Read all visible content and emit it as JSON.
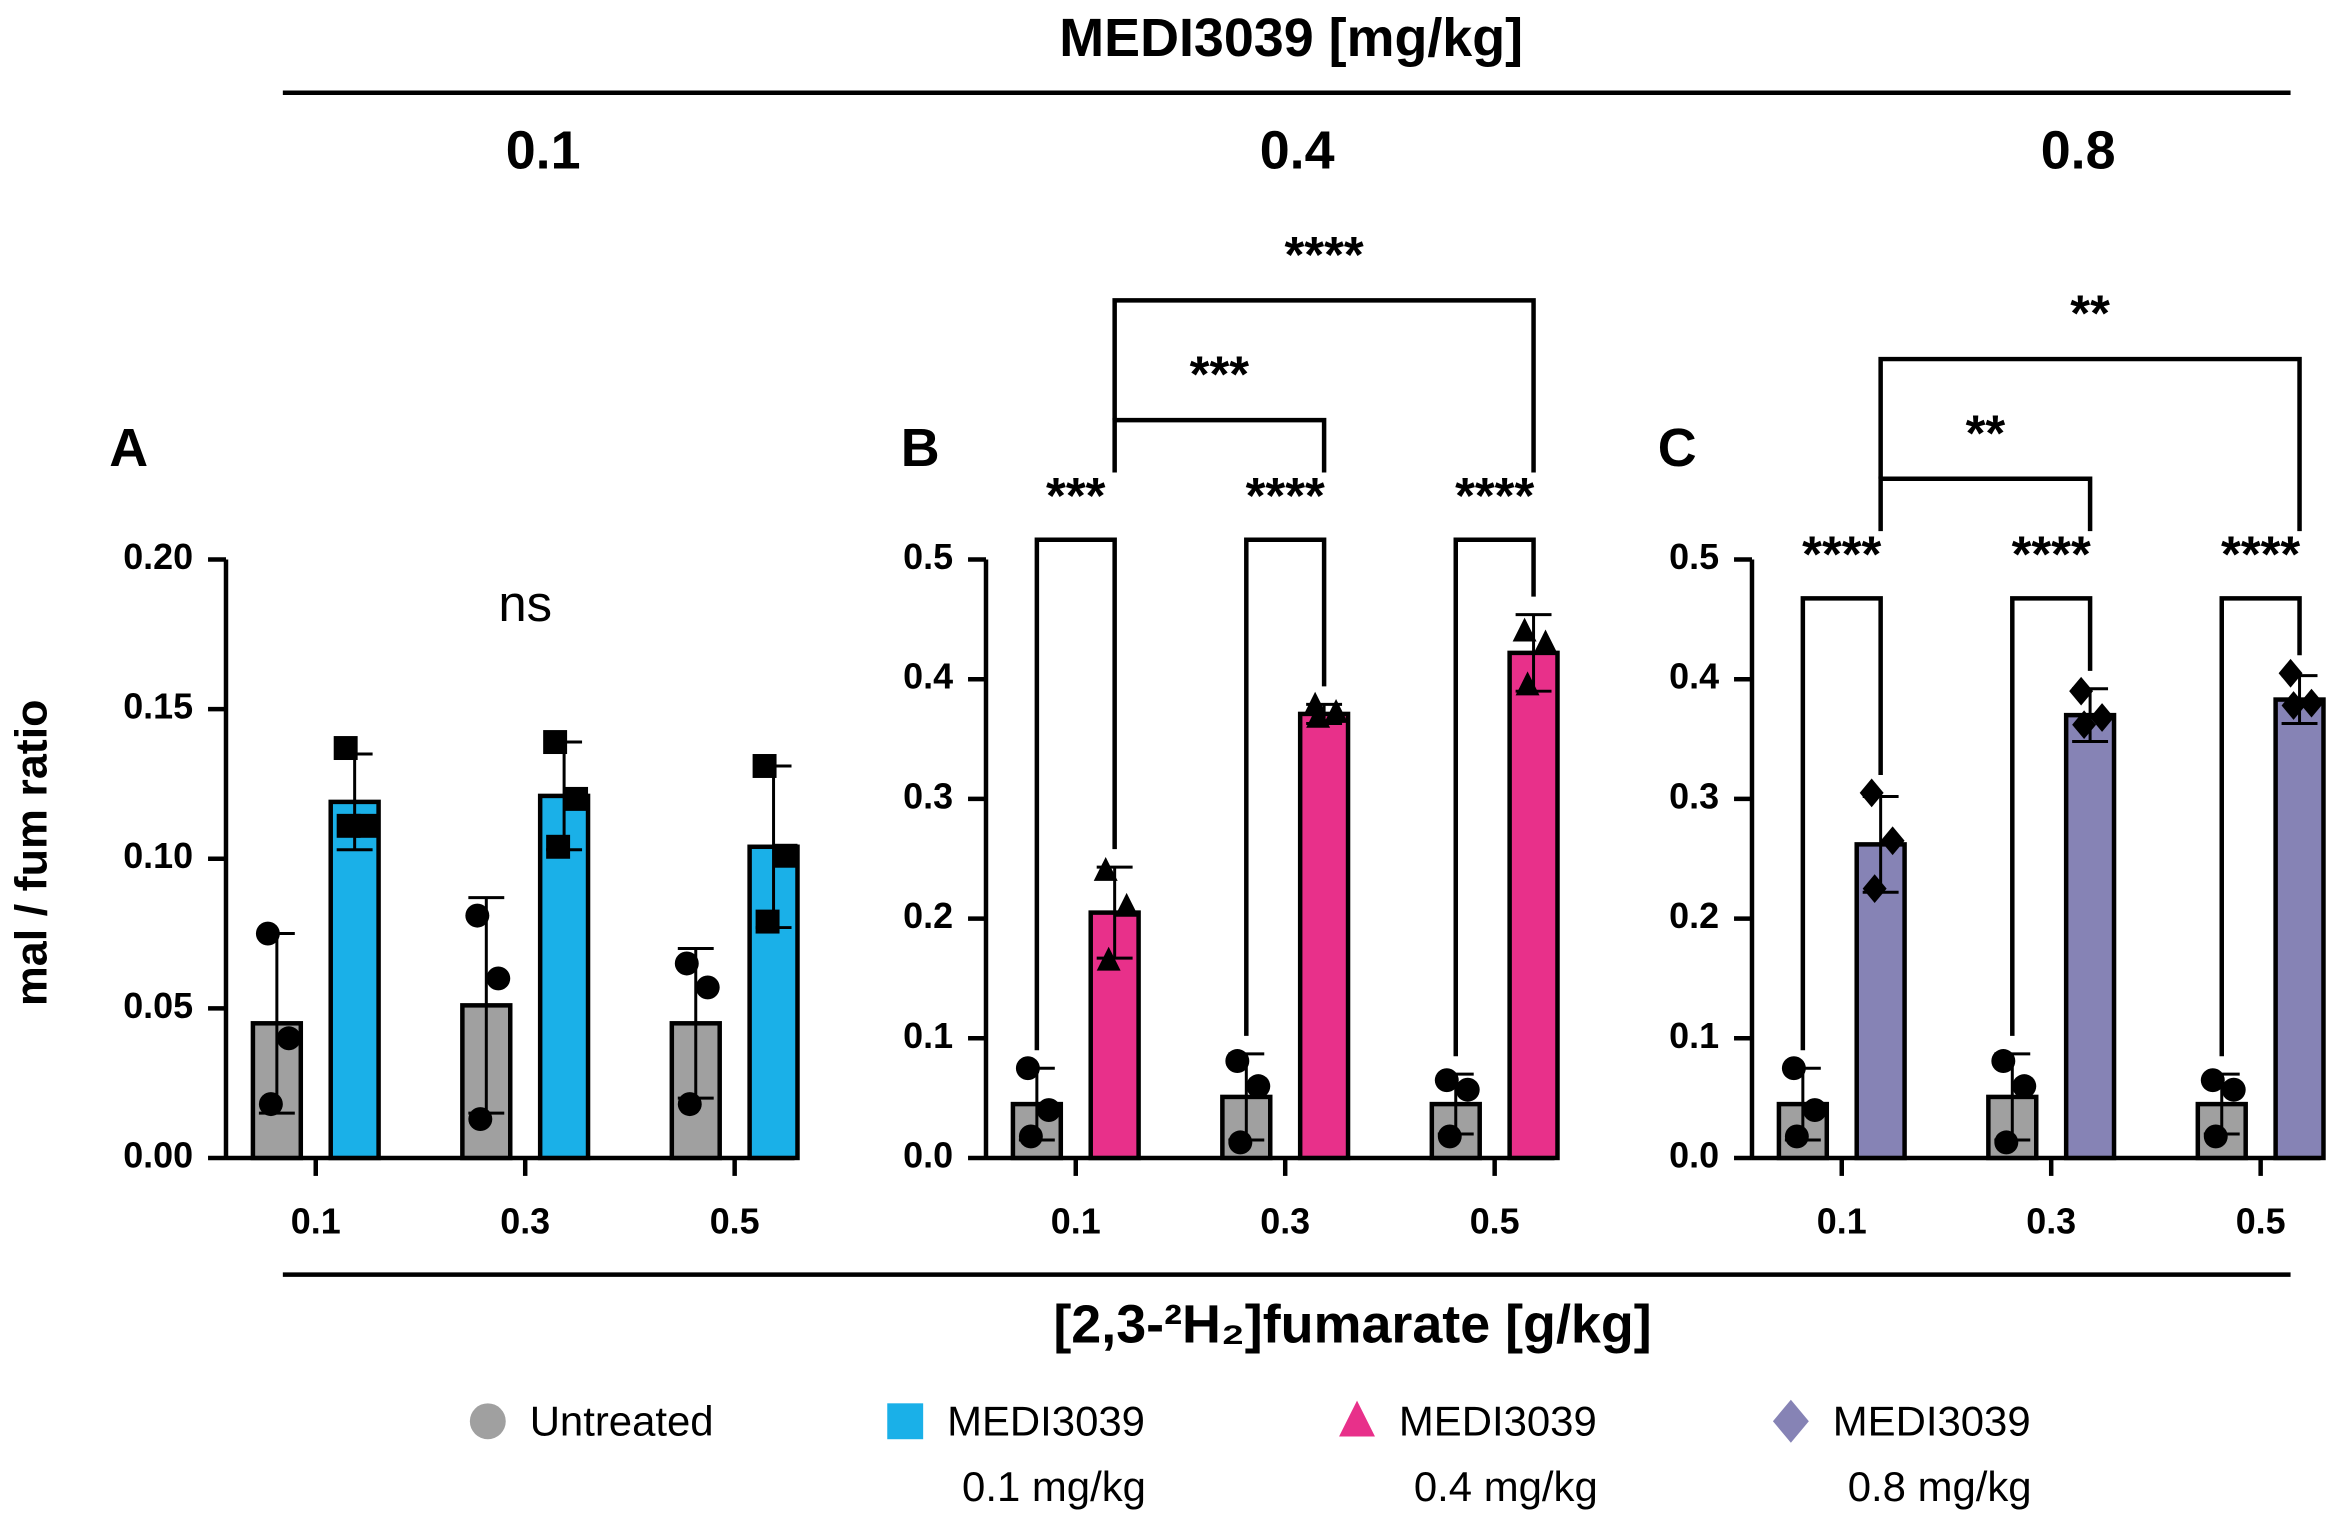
{
  "header": {
    "title": "MEDI3039 [mg/kg]",
    "x_label": "[2,3-²H₂]fumarate [g/kg]"
  },
  "legend": [
    {
      "label": "Untreated",
      "color": "#a0a0a0",
      "marker": "circle"
    },
    {
      "label": "MEDI3039",
      "sublabel": "0.1 mg/kg",
      "color": "#1ab0e8",
      "marker": "square"
    },
    {
      "label": "MEDI3039",
      "sublabel": "0.4 mg/kg",
      "color": "#e8308a",
      "marker": "triangle"
    },
    {
      "label": "MEDI3039",
      "sublabel": "0.8 mg/kg",
      "color": "#8683b5",
      "marker": "diamond"
    }
  ],
  "chart_data": [
    {
      "type": "bar",
      "panel": "A",
      "group_title": "0.1",
      "ylabel": "mal / fum ratio",
      "annotation": "ns",
      "categories": [
        "0.1",
        "0.3",
        "0.5"
      ],
      "ylim": [
        0,
        0.2
      ],
      "yticks": [
        {
          "value": 0,
          "label": "0.00"
        },
        {
          "value": 0.05,
          "label": "0.05"
        },
        {
          "value": 0.1,
          "label": "0.10"
        },
        {
          "value": 0.15,
          "label": "0.15"
        },
        {
          "value": 0.2,
          "label": "0.20"
        }
      ],
      "series": [
        {
          "color": "#a0a0a0",
          "marker": "circle",
          "values": [
            0.045,
            0.051,
            0.045
          ],
          "errors": [
            0.03,
            0.036,
            0.025
          ],
          "points": [
            [
              0.075,
              0.04,
              0.018
            ],
            [
              0.081,
              0.06,
              0.013
            ],
            [
              0.065,
              0.057,
              0.018
            ]
          ]
        },
        {
          "color": "#1ab0e8",
          "marker": "square",
          "values": [
            0.119,
            0.121,
            0.104
          ],
          "errors": [
            0.016,
            0.018,
            0.027
          ],
          "points": [
            [
              0.137,
              0.111,
              0.111
            ],
            [
              0.139,
              0.12,
              0.104
            ],
            [
              0.131,
              0.101,
              0.079
            ]
          ]
        }
      ]
    },
    {
      "type": "bar",
      "panel": "B",
      "group_title": "0.4",
      "within_group_labels": [
        "***",
        "****",
        "****"
      ],
      "across_group_labels": [
        "***",
        "****"
      ],
      "categories": [
        "0.1",
        "0.3",
        "0.5"
      ],
      "ylim": [
        0,
        0.5
      ],
      "yticks": [
        {
          "value": 0,
          "label": "0.0"
        },
        0.1,
        0.2,
        0.3,
        0.4,
        0.5
      ],
      "series": [
        {
          "color": "#a0a0a0",
          "marker": "circle",
          "values": [
            0.045,
            0.051,
            0.045
          ],
          "errors": [
            0.03,
            0.036,
            0.025
          ],
          "points": [
            [
              0.075,
              0.04,
              0.018
            ],
            [
              0.081,
              0.06,
              0.013
            ],
            [
              0.065,
              0.057,
              0.018
            ]
          ]
        },
        {
          "color": "#e8308a",
          "marker": "triangle",
          "values": [
            0.205,
            0.371,
            0.422
          ],
          "errors": [
            0.038,
            0.008,
            0.032
          ],
          "points": [
            [
              0.24,
              0.21,
              0.165
            ],
            [
              0.378,
              0.372,
              0.368
            ],
            [
              0.44,
              0.43,
              0.395
            ]
          ]
        }
      ]
    },
    {
      "type": "bar",
      "panel": "C",
      "group_title": "0.8",
      "within_group_labels": [
        "****",
        "****",
        "****"
      ],
      "across_group_labels": [
        "**",
        "**"
      ],
      "categories": [
        "0.1",
        "0.3",
        "0.5"
      ],
      "ylim": [
        0,
        0.5
      ],
      "yticks": [
        {
          "value": 0,
          "label": "0.0"
        },
        0.1,
        0.2,
        0.3,
        0.4,
        0.5
      ],
      "series": [
        {
          "color": "#a0a0a0",
          "marker": "circle",
          "values": [
            0.045,
            0.051,
            0.045
          ],
          "errors": [
            0.03,
            0.036,
            0.025
          ],
          "points": [
            [
              0.075,
              0.04,
              0.018
            ],
            [
              0.081,
              0.06,
              0.013
            ],
            [
              0.065,
              0.057,
              0.018
            ]
          ]
        },
        {
          "color": "#8683b5",
          "marker": "diamond",
          "values": [
            0.262,
            0.37,
            0.383
          ],
          "errors": [
            0.04,
            0.022,
            0.02
          ],
          "points": [
            [
              0.305,
              0.265,
              0.225
            ],
            [
              0.39,
              0.368,
              0.362
            ],
            [
              0.405,
              0.38,
              0.378
            ]
          ]
        }
      ]
    }
  ]
}
